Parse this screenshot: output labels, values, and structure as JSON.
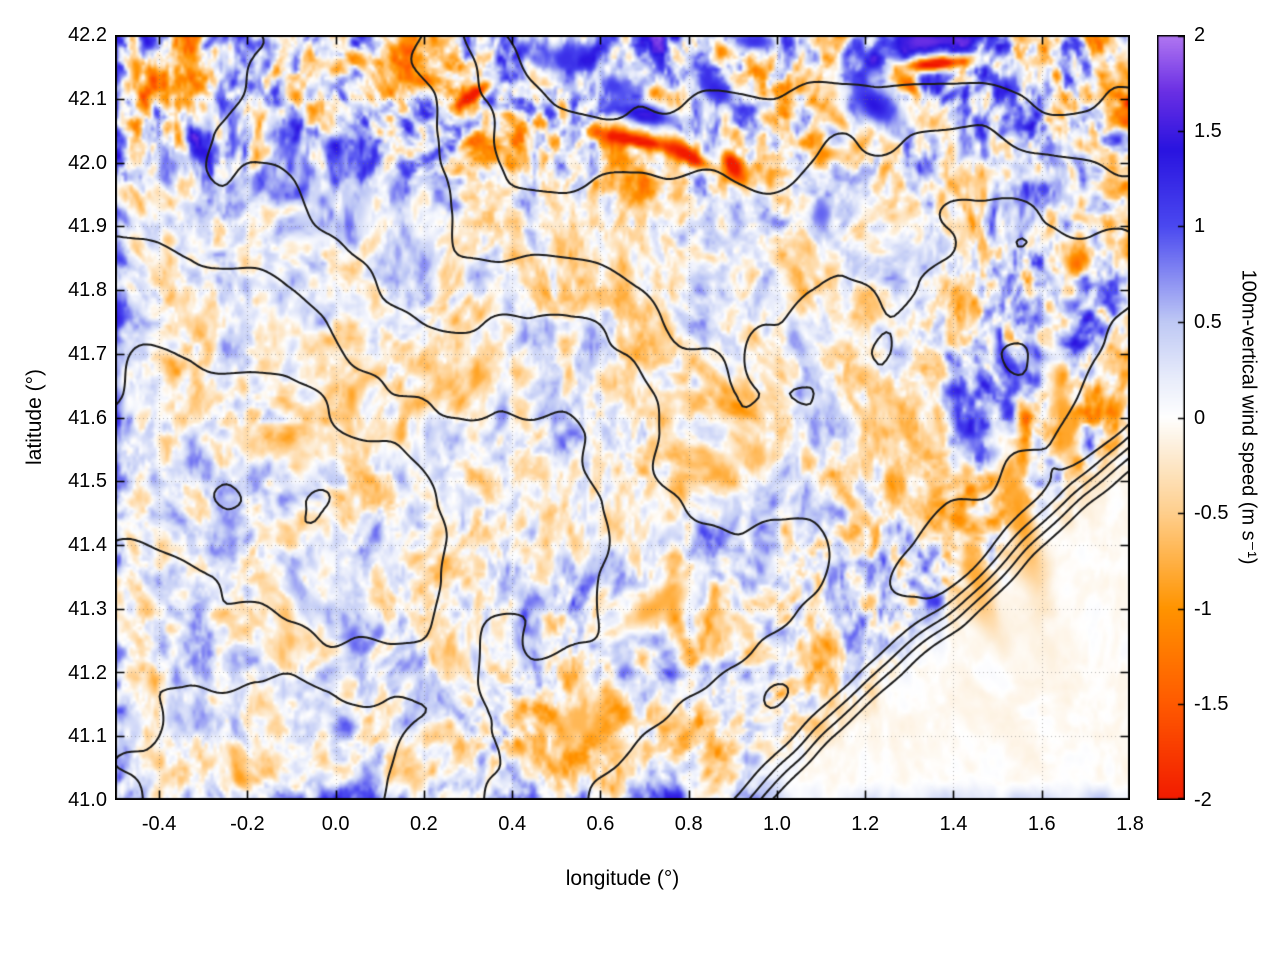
{
  "figure": {
    "background": "#ffffff",
    "border_color": "#000000"
  },
  "chart_data": {
    "type": "heatmap",
    "title": "",
    "xlabel": "longitude (°)",
    "ylabel": "latitude (°)",
    "xlim": [
      -0.5,
      1.8
    ],
    "ylim": [
      41.0,
      42.2
    ],
    "grid": {
      "show": true,
      "style": "dotted",
      "color": "rgba(110,110,110,0.5)"
    },
    "x_ticks": [
      {
        "value": -0.4,
        "label": "-0.4"
      },
      {
        "value": -0.2,
        "label": "-0.2"
      },
      {
        "value": 0.0,
        "label": "0.0"
      },
      {
        "value": 0.2,
        "label": "0.2"
      },
      {
        "value": 0.4,
        "label": "0.4"
      },
      {
        "value": 0.6,
        "label": "0.6"
      },
      {
        "value": 0.8,
        "label": "0.8"
      },
      {
        "value": 1.0,
        "label": "1.0"
      },
      {
        "value": 1.2,
        "label": "1.2"
      },
      {
        "value": 1.4,
        "label": "1.4"
      },
      {
        "value": 1.6,
        "label": "1.6"
      },
      {
        "value": 1.8,
        "label": "1.8"
      }
    ],
    "y_ticks": [
      {
        "value": 41.0,
        "label": "41.0"
      },
      {
        "value": 41.1,
        "label": "41.1"
      },
      {
        "value": 41.2,
        "label": "41.2"
      },
      {
        "value": 41.3,
        "label": "41.3"
      },
      {
        "value": 41.4,
        "label": "41.4"
      },
      {
        "value": 41.5,
        "label": "41.5"
      },
      {
        "value": 41.6,
        "label": "41.6"
      },
      {
        "value": 41.7,
        "label": "41.7"
      },
      {
        "value": 41.8,
        "label": "41.8"
      },
      {
        "value": 41.9,
        "label": "41.9"
      },
      {
        "value": 42.0,
        "label": "42.0"
      },
      {
        "value": 42.1,
        "label": "42.1"
      },
      {
        "value": 42.2,
        "label": "42.2"
      }
    ],
    "colorbar": {
      "label": "100m-vertical wind speed (m s⁻¹)",
      "range": [
        -2,
        2
      ],
      "ticks": [
        {
          "value": 2,
          "label": "2"
        },
        {
          "value": 1.5,
          "label": "1.5"
        },
        {
          "value": 1,
          "label": "1"
        },
        {
          "value": 0.5,
          "label": "0.5"
        },
        {
          "value": 0,
          "label": "0"
        },
        {
          "value": -0.5,
          "label": "-0.5"
        },
        {
          "value": -1,
          "label": "-1"
        },
        {
          "value": -1.5,
          "label": "-1.5"
        },
        {
          "value": -2,
          "label": "-2"
        }
      ],
      "palette": [
        {
          "value": -2.0,
          "color": "#f21b00"
        },
        {
          "value": -1.5,
          "color": "#ff5a00"
        },
        {
          "value": -1.0,
          "color": "#ff9400"
        },
        {
          "value": -0.5,
          "color": "#ffcf8d"
        },
        {
          "value": -0.15,
          "color": "#fdf0dd"
        },
        {
          "value": 0.0,
          "color": "#ffffff"
        },
        {
          "value": 0.2,
          "color": "#e9edfb"
        },
        {
          "value": 0.5,
          "color": "#bfc9f5"
        },
        {
          "value": 1.0,
          "color": "#4b49f0"
        },
        {
          "value": 1.4,
          "color": "#2a14e0"
        },
        {
          "value": 1.7,
          "color": "#6a2fe4"
        },
        {
          "value": 2.0,
          "color": "#b278f2"
        }
      ]
    },
    "contours": {
      "description": "terrain elevation contours overlaid in black",
      "color": "#1b1b1b",
      "line_width": 2,
      "count": 7
    },
    "field": {
      "units": "m s⁻¹",
      "description": "Filamentary 100 m vertical wind speed: weak mottled updraft (blue) / downdraft (orange) streaks over land, strongest along northern mountain crests; smooth near-zero field over the sea in the lower-right corner",
      "background_amplitude": 0.5,
      "features": [
        {
          "lon": 0.31,
          "lat": 42.105,
          "rx": 0.05,
          "ry": 0.012,
          "rot": 25,
          "value": -2.3,
          "note": "red downdraft streak"
        },
        {
          "lon": 0.68,
          "lat": 42.035,
          "rx": 0.095,
          "ry": 0.012,
          "rot": -8,
          "value": -2.4,
          "note": "strong red streak"
        },
        {
          "lon": 0.8,
          "lat": 42.01,
          "rx": 0.06,
          "ry": 0.014,
          "rot": -20,
          "value": -2.2,
          "note": "red streak"
        },
        {
          "lon": 0.9,
          "lat": 41.995,
          "rx": 0.035,
          "ry": 0.018,
          "rot": -40,
          "value": -2.3,
          "note": "red spot"
        },
        {
          "lon": 1.36,
          "lat": 42.155,
          "rx": 0.08,
          "ry": 0.011,
          "rot": 4,
          "value": -2.5,
          "note": "red streak top-right"
        },
        {
          "lon": 1.3,
          "lat": 42.12,
          "rx": 0.03,
          "ry": 0.01,
          "rot": -30,
          "value": -1.6,
          "note": "orange-red filament"
        },
        {
          "lon": 0.7,
          "lat": 42.075,
          "rx": 0.1,
          "ry": 0.022,
          "rot": -8,
          "value": 1.5,
          "note": "blue updraft band"
        },
        {
          "lon": 0.86,
          "lat": 42.115,
          "rx": 0.065,
          "ry": 0.03,
          "rot": -20,
          "value": 1.3,
          "note": "blue patch"
        },
        {
          "lon": 1.22,
          "lat": 42.09,
          "rx": 0.085,
          "ry": 0.04,
          "rot": -25,
          "value": 1.4,
          "note": "blue band"
        },
        {
          "lon": 1.34,
          "lat": 42.19,
          "rx": 0.11,
          "ry": 0.018,
          "rot": 0,
          "value": 1.7,
          "note": "blue strip at top edge"
        },
        {
          "lon": 0.52,
          "lat": 42.165,
          "rx": 0.055,
          "ry": 0.028,
          "rot": 10,
          "value": 1.2,
          "note": "blue patch"
        },
        {
          "lon": 0.95,
          "lat": 42.19,
          "rx": 0.06,
          "ry": 0.02,
          "rot": 0,
          "value": 1.2,
          "note": "blue patch top edge"
        },
        {
          "lon": 0.63,
          "lat": 42.12,
          "rx": 0.045,
          "ry": 0.022,
          "rot": -15,
          "value": 1.1,
          "note": "blue filament"
        },
        {
          "lon": 1.1,
          "lat": 41.92,
          "rx": 0.03,
          "ry": 0.03,
          "rot": 0,
          "value": 0.9,
          "note": "blue spot"
        },
        {
          "lon": 1.55,
          "lat": 41.45,
          "rx": 0.035,
          "ry": 0.12,
          "rot": 20,
          "value": -0.9,
          "note": "orange lee-wave streak"
        },
        {
          "lon": 1.65,
          "lat": 41.6,
          "rx": 0.03,
          "ry": 0.1,
          "rot": 15,
          "value": -0.85,
          "note": "orange streak east side"
        },
        {
          "lon": 1.45,
          "lat": 41.35,
          "rx": 0.03,
          "ry": 0.08,
          "rot": 25,
          "value": -0.8,
          "note": "orange streak"
        },
        {
          "lon": 0.72,
          "lat": 41.3,
          "rx": 0.1,
          "ry": 0.03,
          "rot": 20,
          "value": -0.8,
          "note": "orange band central south"
        },
        {
          "lon": 0.55,
          "lat": 41.12,
          "rx": 0.05,
          "ry": 0.04,
          "rot": 0,
          "value": -0.7,
          "note": "orange patch"
        }
      ]
    }
  }
}
